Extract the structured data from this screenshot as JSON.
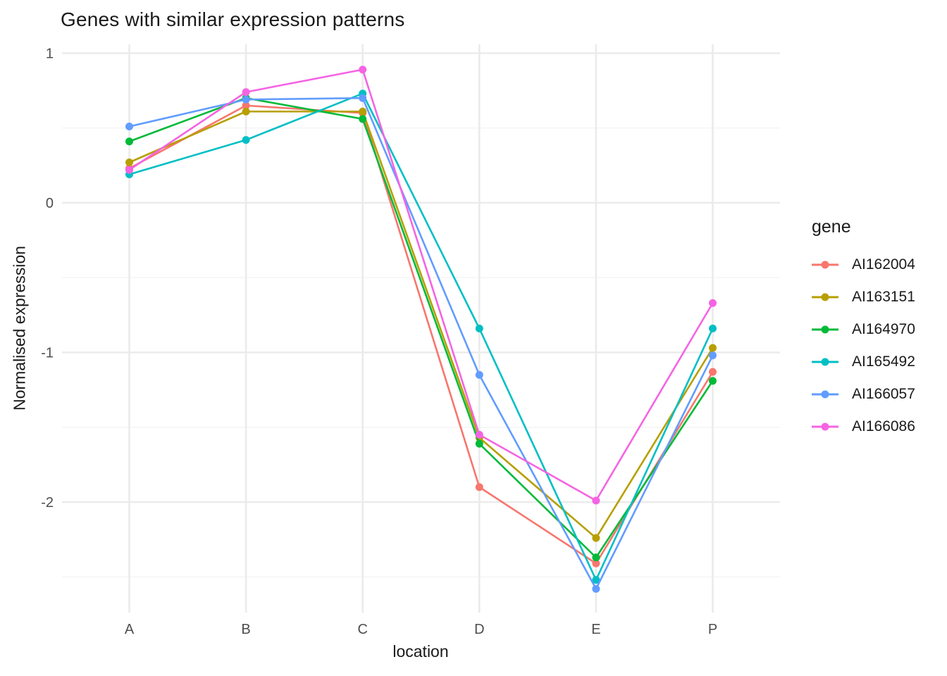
{
  "title": "Genes with similar expression patterns",
  "chart_data": {
    "type": "line",
    "categories": [
      "A",
      "B",
      "C",
      "D",
      "E",
      "P"
    ],
    "series": [
      {
        "name": "AI162004",
        "color": "#F8766D",
        "values": [
          0.23,
          0.65,
          0.6,
          -1.9,
          -2.41,
          -1.13
        ]
      },
      {
        "name": "AI163151",
        "color": "#B79F00",
        "values": [
          0.27,
          0.61,
          0.61,
          -1.57,
          -2.24,
          -0.97
        ]
      },
      {
        "name": "AI164970",
        "color": "#00BA38",
        "values": [
          0.41,
          0.7,
          0.56,
          -1.61,
          -2.37,
          -1.19
        ]
      },
      {
        "name": "AI165492",
        "color": "#00BFC4",
        "values": [
          0.19,
          0.42,
          0.73,
          -0.84,
          -2.52,
          -0.84
        ]
      },
      {
        "name": "AI166057",
        "color": "#619CFF",
        "values": [
          0.51,
          0.69,
          0.7,
          -1.15,
          -2.58,
          -1.02
        ]
      },
      {
        "name": "AI166086",
        "color": "#F564E3",
        "values": [
          0.22,
          0.74,
          0.89,
          -1.55,
          -1.99,
          -0.67
        ]
      }
    ],
    "xlabel": "location",
    "ylabel": "Normalised expression",
    "ylim": [
      -2.74,
      1.06
    ],
    "yticks_major": [
      1,
      0,
      -1,
      -2
    ],
    "yticks_minor": [
      0.5,
      -0.5,
      -1.5,
      -2.5
    ],
    "legend_title": "gene",
    "legend_position": "right",
    "grid": true
  },
  "style": {
    "grid_major_color": "#EBEBEB",
    "grid_minor_color": "#F4F4F4",
    "tick_text_color": "#4D4D4D",
    "point_radius": 5.5,
    "line_width": 2.6
  }
}
